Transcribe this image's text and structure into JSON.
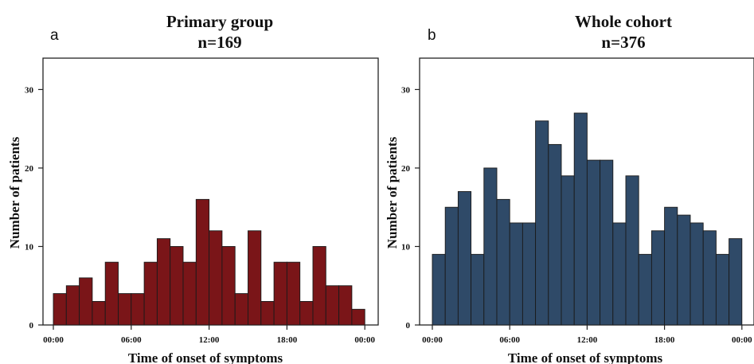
{
  "chart_data": [
    {
      "type": "bar",
      "panel_label": "a",
      "title": "Primary group",
      "subtitle": "n=169",
      "xlabel": "Time of onset of symptoms",
      "ylabel": "Number of patients",
      "ylim": [
        0,
        34
      ],
      "yticks": [
        0,
        10,
        20,
        30
      ],
      "xticks": [
        "00:00",
        "06:00",
        "12:00",
        "18:00",
        "00:00"
      ],
      "categories": [
        "00:00",
        "01:00",
        "02:00",
        "03:00",
        "04:00",
        "05:00",
        "06:00",
        "07:00",
        "08:00",
        "09:00",
        "10:00",
        "11:00",
        "12:00",
        "13:00",
        "14:00",
        "15:00",
        "16:00",
        "17:00",
        "18:00",
        "19:00",
        "20:00",
        "21:00",
        "22:00",
        "23:00"
      ],
      "values": [
        4,
        5,
        6,
        3,
        8,
        4,
        4,
        8,
        11,
        10,
        8,
        16,
        12,
        10,
        4,
        12,
        3,
        8,
        8,
        3,
        10,
        5,
        5,
        2
      ],
      "color": "#7a1518",
      "grid": false
    },
    {
      "type": "bar",
      "panel_label": "b",
      "title": "Whole cohort",
      "subtitle": "n=376",
      "xlabel": "Time of onset of symptoms",
      "ylabel": "Number of patients",
      "ylim": [
        0,
        34
      ],
      "yticks": [
        0,
        10,
        20,
        30
      ],
      "xticks": [
        "00:00",
        "06:00",
        "12:00",
        "18:00",
        "00:00"
      ],
      "categories": [
        "00:00",
        "01:00",
        "02:00",
        "03:00",
        "04:00",
        "05:00",
        "06:00",
        "07:00",
        "08:00",
        "09:00",
        "10:00",
        "11:00",
        "12:00",
        "13:00",
        "14:00",
        "15:00",
        "16:00",
        "17:00",
        "18:00",
        "19:00",
        "20:00",
        "21:00",
        "22:00",
        "23:00"
      ],
      "values": [
        9,
        15,
        17,
        9,
        20,
        16,
        13,
        13,
        26,
        23,
        19,
        27,
        21,
        21,
        13,
        19,
        9,
        12,
        15,
        14,
        13,
        12,
        9,
        11
      ],
      "color": "#2f4a68",
      "grid": false
    }
  ]
}
